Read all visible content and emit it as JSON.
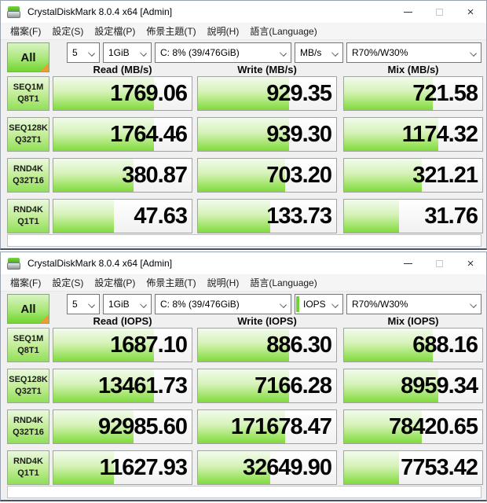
{
  "windows": [
    {
      "title": "CrystalDiskMark 8.0.4 x64 [Admin]",
      "menu": [
        "檔案(F)",
        "設定(S)",
        "設定檔(P)",
        "佈景主題(T)",
        "說明(H)",
        "語言(Language)"
      ],
      "toolbar": {
        "all_label": "All",
        "run_count": "5",
        "test_size": "1GiB",
        "target_drive": "C: 8% (39/476GiB)",
        "unit": "MB/s",
        "mix_profile": "R70%/W30%"
      },
      "columns": [
        "Read (MB/s)",
        "Write (MB/s)",
        "Mix (MB/s)"
      ],
      "rows": [
        {
          "label_top": "SEQ1M",
          "label_bottom": "Q8T1",
          "values": [
            "1769.06",
            "929.35",
            "721.58"
          ],
          "fills": [
            73,
            66,
            64
          ]
        },
        {
          "label_top": "SEQ128K",
          "label_bottom": "Q32T1",
          "values": [
            "1764.46",
            "939.30",
            "1174.32"
          ],
          "fills": [
            73,
            66,
            68
          ]
        },
        {
          "label_top": "RND4K",
          "label_bottom": "Q32T16",
          "values": [
            "380.87",
            "703.20",
            "321.21"
          ],
          "fills": [
            58,
            63,
            56
          ]
        },
        {
          "label_top": "RND4K",
          "label_bottom": "Q1T1",
          "values": [
            "47.63",
            "133.73",
            "31.76"
          ],
          "fills": [
            44,
            52,
            40
          ]
        }
      ],
      "status_text": ""
    },
    {
      "title": "CrystalDiskMark 8.0.4 x64 [Admin]",
      "menu": [
        "檔案(F)",
        "設定(S)",
        "設定檔(P)",
        "佈景主題(T)",
        "說明(H)",
        "語言(Language)"
      ],
      "toolbar": {
        "all_label": "All",
        "run_count": "5",
        "test_size": "1GiB",
        "target_drive": "C: 8% (39/476GiB)",
        "unit": "IOPS",
        "mix_profile": "R70%/W30%"
      },
      "columns": [
        "Read (IOPS)",
        "Write (IOPS)",
        "Mix (IOPS)"
      ],
      "rows": [
        {
          "label_top": "SEQ1M",
          "label_bottom": "Q8T1",
          "values": [
            "1687.10",
            "886.30",
            "688.16"
          ],
          "fills": [
            73,
            66,
            64
          ]
        },
        {
          "label_top": "SEQ128K",
          "label_bottom": "Q32T1",
          "values": [
            "13461.73",
            "7166.28",
            "8959.34"
          ],
          "fills": [
            73,
            66,
            68
          ]
        },
        {
          "label_top": "RND4K",
          "label_bottom": "Q32T16",
          "values": [
            "92985.60",
            "171678.47",
            "78420.65"
          ],
          "fills": [
            58,
            63,
            56
          ]
        },
        {
          "label_top": "RND4K",
          "label_bottom": "Q1T1",
          "values": [
            "11627.93",
            "32649.90",
            "7753.42"
          ],
          "fills": [
            44,
            52,
            40
          ]
        }
      ],
      "status_text": ""
    }
  ],
  "colors": {
    "bar_green_bottom": "#7fda3e",
    "bar_green_top": "#f2fbec",
    "tile_green": "#8fdf57",
    "all_corner_orange": "#f09a36",
    "window_bottom_border": "#44536a",
    "focus_caret_green": "#6cd437"
  }
}
